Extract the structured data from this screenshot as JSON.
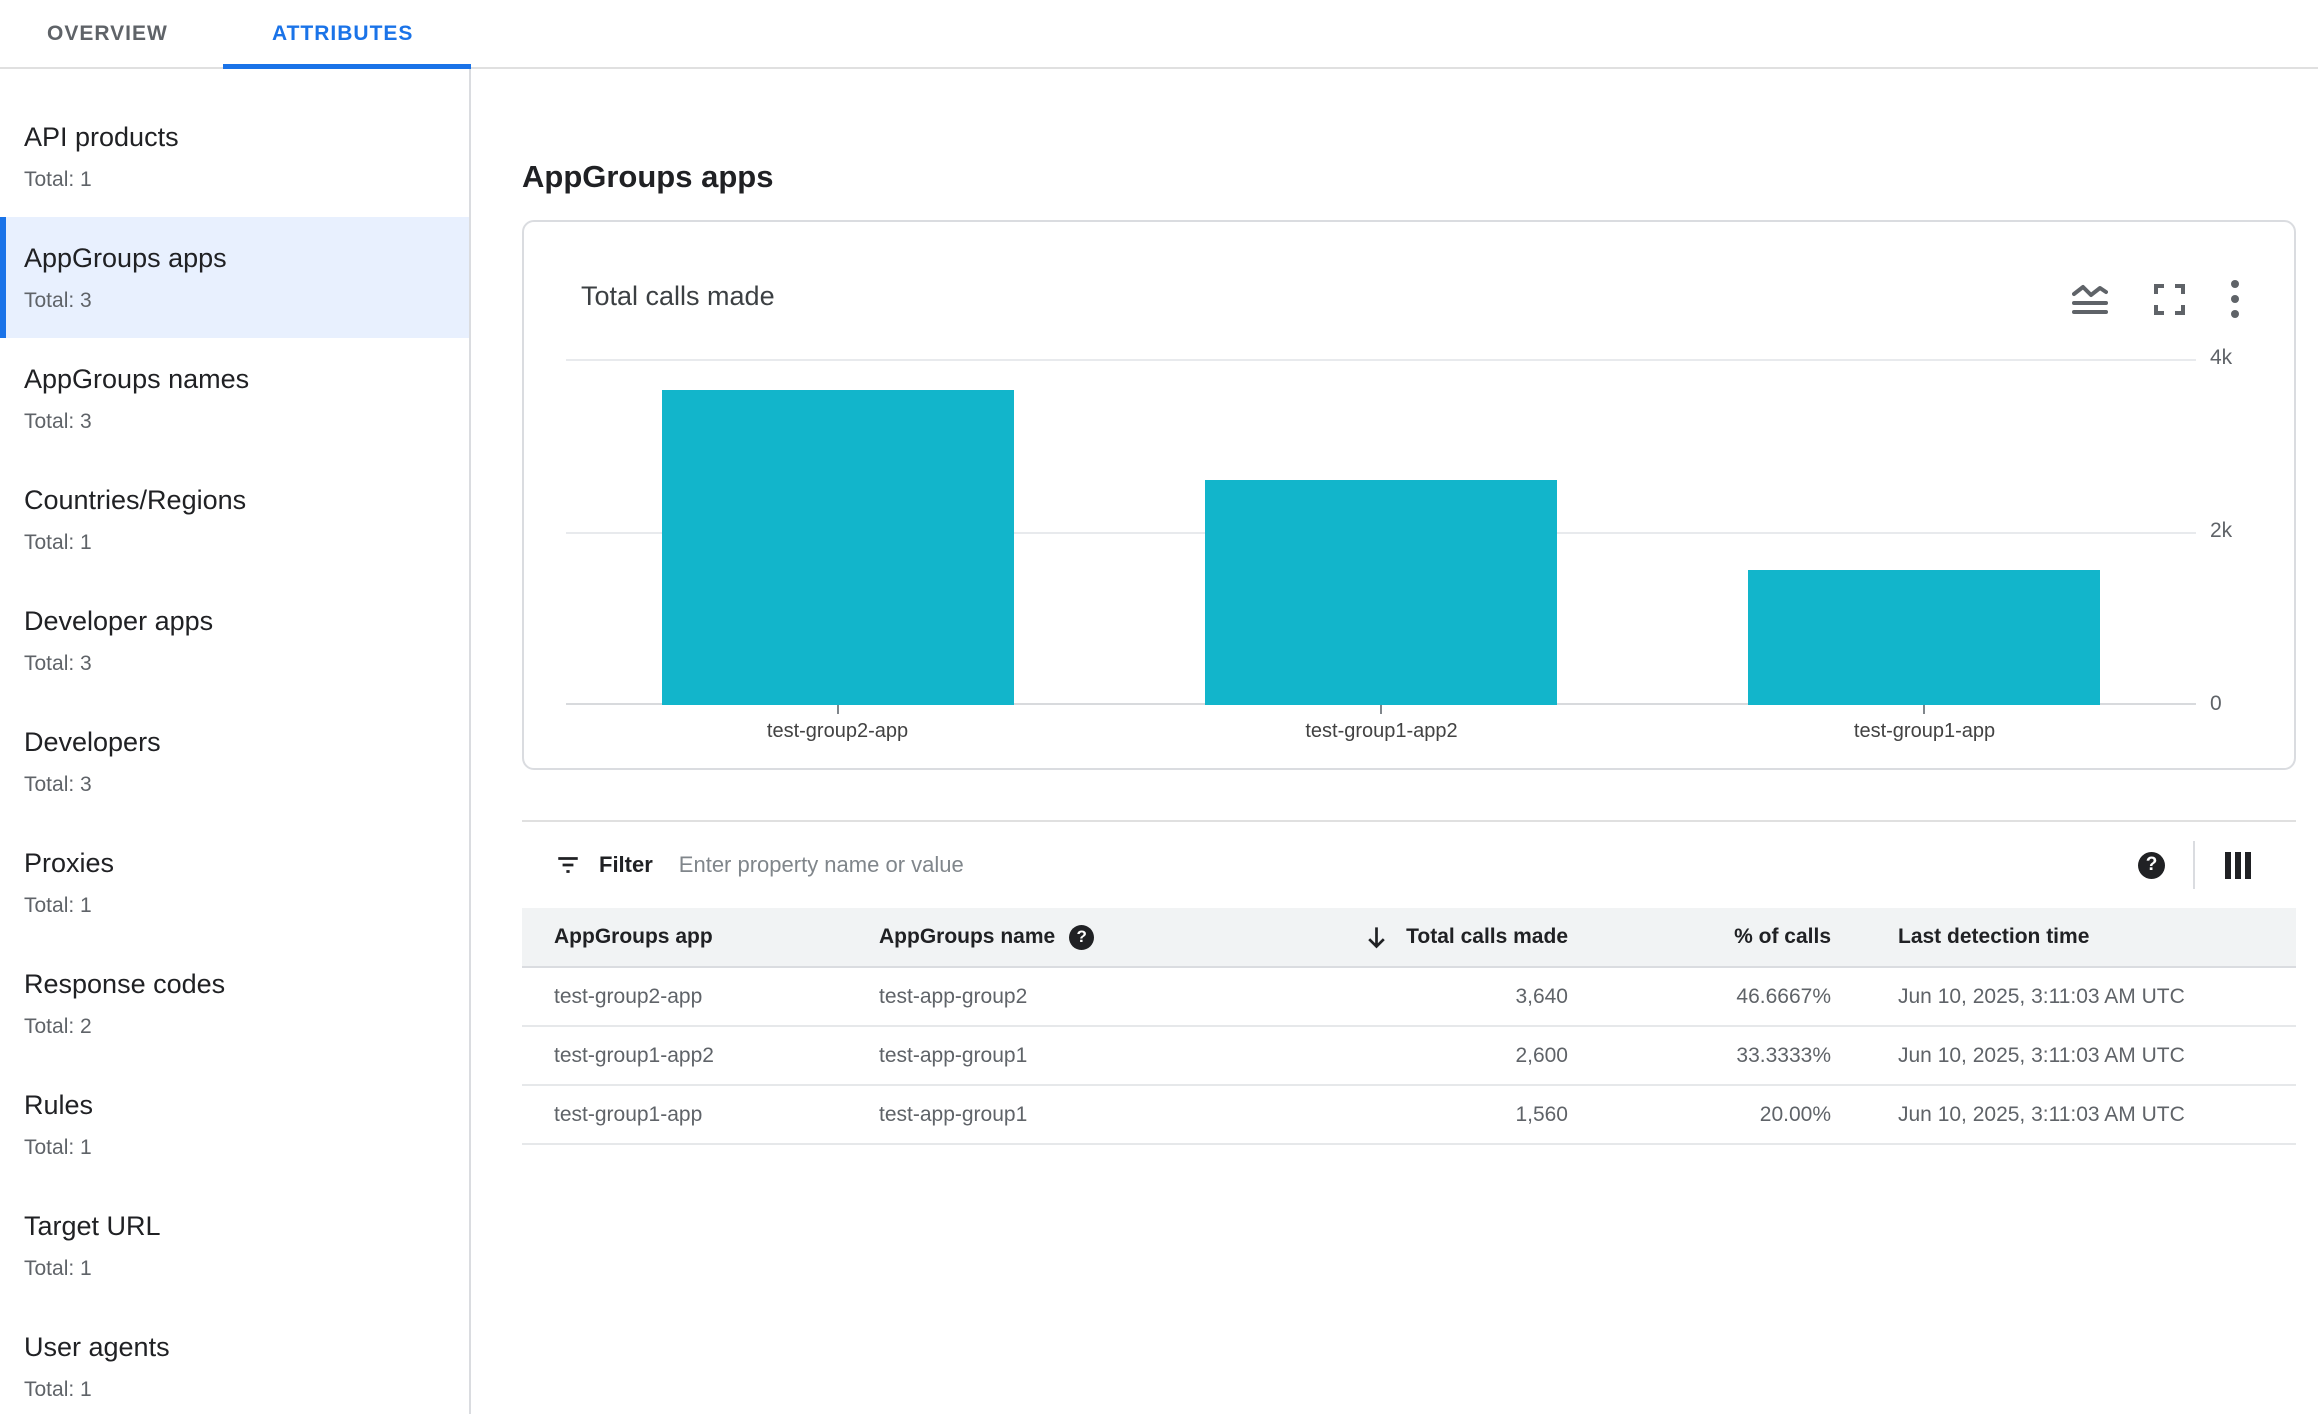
{
  "tabs": {
    "items": [
      {
        "label": "OVERVIEW",
        "active": false
      },
      {
        "label": "ATTRIBUTES",
        "active": true
      }
    ]
  },
  "sidebar": {
    "items": [
      {
        "label": "API products",
        "total": "Total: 1",
        "selected": false
      },
      {
        "label": "AppGroups apps",
        "total": "Total: 3",
        "selected": true
      },
      {
        "label": "AppGroups names",
        "total": "Total: 3",
        "selected": false
      },
      {
        "label": "Countries/Regions",
        "total": "Total: 1",
        "selected": false
      },
      {
        "label": "Developer apps",
        "total": "Total: 3",
        "selected": false
      },
      {
        "label": "Developers",
        "total": "Total: 3",
        "selected": false
      },
      {
        "label": "Proxies",
        "total": "Total: 1",
        "selected": false
      },
      {
        "label": "Response codes",
        "total": "Total: 2",
        "selected": false
      },
      {
        "label": "Rules",
        "total": "Total: 1",
        "selected": false
      },
      {
        "label": "Target URL",
        "total": "Total: 1",
        "selected": false
      },
      {
        "label": "User agents",
        "total": "Total: 1",
        "selected": false
      }
    ]
  },
  "main": {
    "page_title": "AppGroups apps",
    "card": {
      "title": "Total calls made",
      "action_icons": [
        "area-chart-icon",
        "fullscreen-icon",
        "more-vert-icon"
      ]
    },
    "filter": {
      "label": "Filter",
      "placeholder": "Enter property name or value",
      "icons": [
        "filter-list-icon",
        "help-icon",
        "view-columns-icon"
      ]
    },
    "table": {
      "columns": [
        {
          "label": "AppGroups app",
          "align": "left"
        },
        {
          "label": "AppGroups name",
          "align": "left",
          "help_icon": true
        },
        {
          "label": "Total calls made",
          "align": "right",
          "sort": "desc"
        },
        {
          "label": "% of calls",
          "align": "right"
        },
        {
          "label": "Last detection time",
          "align": "left"
        }
      ],
      "rows": [
        [
          "test-group2-app",
          "test-app-group2",
          "3,640",
          "46.6667%",
          "Jun 10, 2025, 3:11:03 AM UTC"
        ],
        [
          "test-group1-app2",
          "test-app-group1",
          "2,600",
          "33.3333%",
          "Jun 10, 2025, 3:11:03 AM UTC"
        ],
        [
          "test-group1-app",
          "test-app-group1",
          "1,560",
          "20.00%",
          "Jun 10, 2025, 3:11:03 AM UTC"
        ]
      ]
    }
  },
  "chart_data": {
    "type": "bar",
    "title": "Total calls made",
    "categories": [
      "test-group2-app",
      "test-group1-app2",
      "test-group1-app"
    ],
    "values": [
      3640,
      2600,
      1560
    ],
    "xlabel": "",
    "ylabel": "",
    "ylim": [
      0,
      4000
    ],
    "yticks": [
      {
        "value": 4000,
        "label": "4k"
      },
      {
        "value": 2000,
        "label": "2k"
      },
      {
        "value": 0,
        "label": "0"
      }
    ],
    "grid": true,
    "legend_position": "none",
    "bar_color": "#12b5cb"
  },
  "colors": {
    "accent_blue": "#1a73e8",
    "selected_item_bg": "#e8f0fe",
    "bar_teal": "#12b5cb",
    "header_row_bg": "#f1f3f4",
    "text_primary": "#202124",
    "text_secondary": "#5f6368",
    "border": "#dadce0"
  }
}
